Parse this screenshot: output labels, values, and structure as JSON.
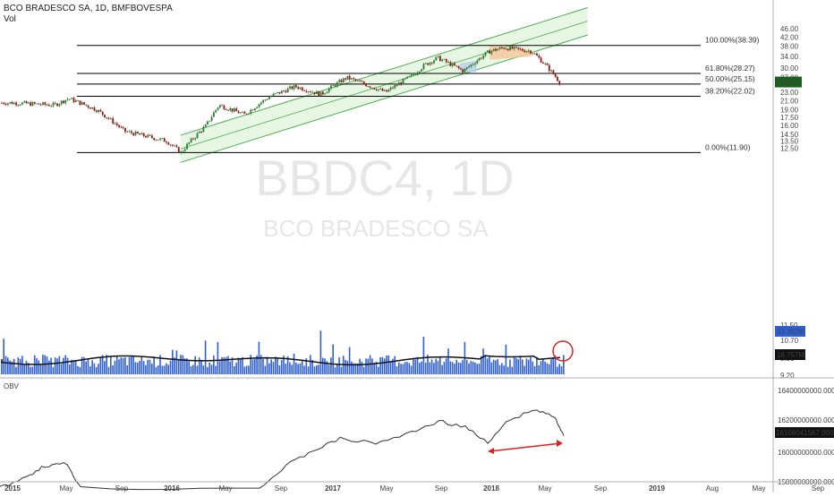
{
  "header": {
    "title": "BCO BRADESCO SA, 1D, BMFBOVESPA",
    "vol_label": "Vol"
  },
  "watermark": {
    "symbol": "BBDC4, 1D",
    "name": "BCO BRADESCO SA"
  },
  "obv_label": "OBV",
  "colors": {
    "up": "#2e7d32",
    "down": "#8b1a1a",
    "channel": "#4caf50",
    "channel_fill": "#e4f4df",
    "volume": "#2f5fd6",
    "obv_line": "#333333",
    "annotation": "#e02020",
    "zone_orange": "#f6c79b",
    "zone_blue": "#b9d0e8"
  },
  "chart_data": [
    {
      "type": "candlestick",
      "title": "BCO BRADESCO SA, 1D, BMFBOVESPA",
      "y_scale": "log",
      "ylim": [
        9.2,
        48
      ],
      "yticks": [
        "46.00",
        "42.00",
        "38.00",
        "34.00",
        "30.00",
        "27.00",
        "25.00",
        "23.00",
        "21.00",
        "19.00",
        "17.50",
        "16.00",
        "14.50",
        "13.50",
        "12.50",
        "11.50",
        "10.70",
        "9.90",
        "9.20"
      ],
      "last_price": "25.74",
      "x_ticks": [
        "2015",
        "May",
        "Sep",
        "2016",
        "May",
        "Sep",
        "2017",
        "May",
        "Sep",
        "2018",
        "May",
        "Sep",
        "2019",
        "Aug",
        "May",
        "Sep"
      ],
      "key_points": [
        {
          "date": "2015-01",
          "close": 20.5
        },
        {
          "date": "2015-04",
          "close": 20.0
        },
        {
          "date": "2015-05",
          "close": 21.5
        },
        {
          "date": "2015-07",
          "close": 19.0
        },
        {
          "date": "2015-09",
          "close": 15.0
        },
        {
          "date": "2015-12",
          "close": 13.5
        },
        {
          "date": "2016-01",
          "close": 11.9
        },
        {
          "date": "2016-03",
          "close": 16.0
        },
        {
          "date": "2016-04",
          "close": 20.0
        },
        {
          "date": "2016-06",
          "close": 18.0
        },
        {
          "date": "2016-08",
          "close": 22.0
        },
        {
          "date": "2016-10",
          "close": 24.5
        },
        {
          "date": "2016-12",
          "close": 22.5
        },
        {
          "date": "2017-02",
          "close": 27.0
        },
        {
          "date": "2017-05",
          "close": 23.0
        },
        {
          "date": "2017-07",
          "close": 27.5
        },
        {
          "date": "2017-08",
          "close": 31.0
        },
        {
          "date": "2017-09",
          "close": 33.5
        },
        {
          "date": "2017-11",
          "close": 29.0
        },
        {
          "date": "2018-01",
          "close": 36.0
        },
        {
          "date": "2018-02",
          "close": 37.5
        },
        {
          "date": "2018-04",
          "close": 36.0
        },
        {
          "date": "2018-05",
          "close": 31.0
        },
        {
          "date": "2018-06",
          "close": 25.74
        }
      ],
      "fib_levels": [
        {
          "label": "100.00%(38.39)",
          "value": 38.39
        },
        {
          "label": "61.80%(28.27)",
          "value": 28.27
        },
        {
          "label": "50.00%(25.15)",
          "value": 25.15
        },
        {
          "label": "38.20%(22.02)",
          "value": 22.02
        },
        {
          "label": "0.00%(11.90)",
          "value": 11.9
        }
      ],
      "channel": {
        "start_date": "2016-01",
        "end_date": "2018-08",
        "lower_start": 10.7,
        "lower_end": 43.0,
        "mid_start": 12.4,
        "mid_end": 50.0,
        "upper_start": 14.4,
        "upper_end": 58.0
      }
    },
    {
      "type": "bar",
      "name": "Vol",
      "last_value": "33.362M",
      "ma_value": "16.757M"
    },
    {
      "type": "line",
      "name": "OBV",
      "yticks": [
        "16400000000.0000",
        "16200000000.0000",
        "16000000000.0000",
        "15800000000.0000"
      ],
      "last_value": "16109041567.0000"
    }
  ]
}
